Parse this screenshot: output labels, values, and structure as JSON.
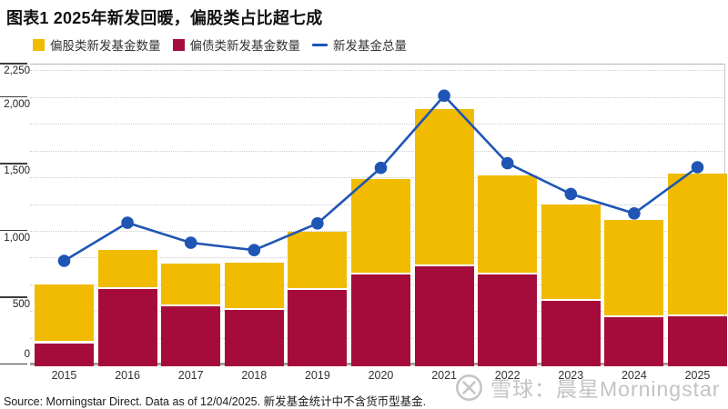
{
  "title": "图表1 2025年新发回暖，偏股类占比超七成",
  "legend": {
    "items": [
      {
        "label": "偏股类新发基金数量",
        "marker": "square",
        "color": "#F0BB00"
      },
      {
        "label": "偏债类新发基金数量",
        "marker": "square",
        "color": "#A60C3B"
      },
      {
        "label": "新发基金总量",
        "marker": "line",
        "color": "#1F55B5"
      }
    ]
  },
  "chart_data": {
    "type": "bar",
    "subtype": "stacked-bars-with-total-line",
    "title": "图表1 2025年新发回暖，偏股类占比超七成",
    "categories": [
      "2015",
      "2016",
      "2017",
      "2018",
      "2019",
      "2020",
      "2021",
      "2022",
      "2023",
      "2024",
      "2025"
    ],
    "series": [
      {
        "name": "偏股类新发基金数量",
        "type": "bar",
        "stack": "top",
        "color": "#F0BB00",
        "values": [
          440,
          295,
          320,
          355,
          440,
          710,
          1175,
          740,
          720,
          725,
          1065
        ]
      },
      {
        "name": "偏债类新发基金数量",
        "type": "bar",
        "stack": "bottom",
        "color": "#A60C3B",
        "values": [
          160,
          565,
          435,
          405,
          555,
          675,
          735,
          675,
          475,
          355,
          360
        ]
      },
      {
        "name": "新发基金总量",
        "type": "line",
        "color": "#1F55B5",
        "values": [
          775,
          1060,
          910,
          855,
          1055,
          1470,
          2010,
          1505,
          1275,
          1130,
          1475
        ]
      }
    ],
    "xlabel": "",
    "ylabel": "",
    "ylim": [
      0,
      2250
    ],
    "ytick_values": [
      0,
      500,
      1000,
      1500,
      2000,
      2250
    ],
    "ytick_labels": [
      "0",
      "500",
      "1,000",
      "1,500",
      "2,000",
      "2,250"
    ],
    "gridline_interval": 200,
    "grid": "dotted-horizontal",
    "legend_position": "top-left"
  },
  "watermark": {
    "icon": "xueqiu-snowball-logo",
    "text": "雪球：晨星Morningstar"
  },
  "footer": {
    "source": "Source: Morningstar Direct. Data as of 12/04/2025. 新发基金统计中不含货币型基金."
  },
  "colors": {
    "equity_bar": "#F0BB00",
    "bond_bar": "#A60C3B",
    "total_line": "#1F55B5",
    "axis_line": "#9e9e9e",
    "grid_line": "#cccccc",
    "watermark": "#b9b9b9"
  }
}
